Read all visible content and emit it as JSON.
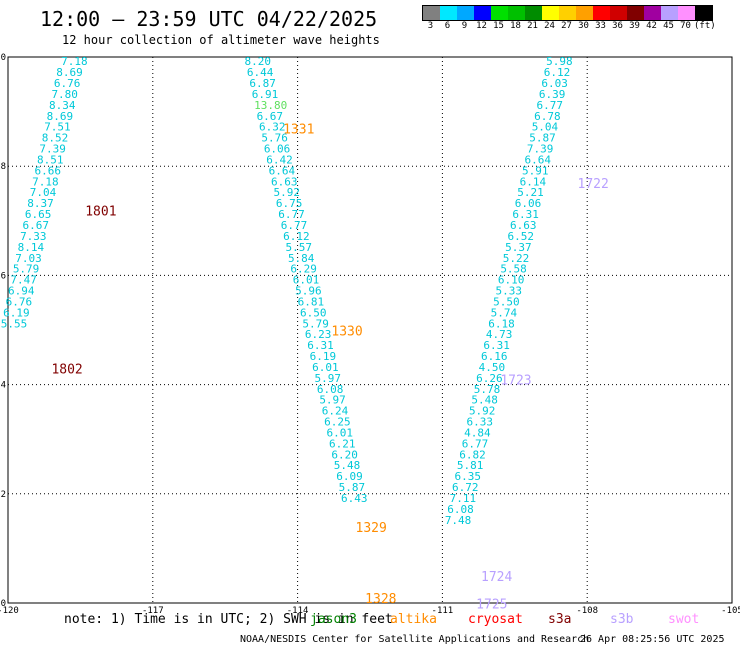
{
  "header": {
    "title": "12:00 – 23:59 UTC 04/22/2025",
    "subtitle": "12 hour collection of altimeter wave heights"
  },
  "colorbar": {
    "colors": [
      "#808080",
      "#00e8ff",
      "#00a8ff",
      "#0000ff",
      "#00e000",
      "#00c000",
      "#008c00",
      "#ffff00",
      "#ffd000",
      "#ffa000",
      "#ff0000",
      "#d00000",
      "#800000",
      "#a000a0",
      "#b8a0ff",
      "#ff90ff",
      "#000000"
    ],
    "labels": [
      "3",
      "6",
      "9",
      "12",
      "15",
      "18",
      "21",
      "24",
      "27",
      "30",
      "33",
      "36",
      "39",
      "42",
      "45",
      "70",
      "(ft)"
    ]
  },
  "chart_data": {
    "type": "scatter",
    "xlim": [
      -120,
      -105
    ],
    "ylim": [
      0,
      10
    ],
    "x_ticks": [
      "-120",
      "-117",
      "-114",
      "-111",
      "-108",
      "-105"
    ],
    "y_ticks": [
      "0",
      "2",
      "4",
      "6",
      "8",
      "10"
    ],
    "grid": true,
    "wave_labels": [
      {
        "x": -118.9,
        "y": 9.85,
        "label": "7.18",
        "color": "#00c8d8"
      },
      {
        "x": -119.0,
        "y": 9.65,
        "label": "8.69",
        "color": "#00c8d8"
      },
      {
        "x": -119.05,
        "y": 9.45,
        "label": "6.76",
        "color": "#00c8d8"
      },
      {
        "x": -119.1,
        "y": 9.25,
        "label": "7.80",
        "color": "#00c8d8"
      },
      {
        "x": -119.15,
        "y": 9.05,
        "label": "8.34",
        "color": "#00c8d8"
      },
      {
        "x": -119.2,
        "y": 8.85,
        "label": "8.69",
        "color": "#00c8d8"
      },
      {
        "x": -119.25,
        "y": 8.65,
        "label": "7.51",
        "color": "#00c8d8"
      },
      {
        "x": -119.3,
        "y": 8.45,
        "label": "8.52",
        "color": "#00c8d8"
      },
      {
        "x": -119.35,
        "y": 8.25,
        "label": "7.39",
        "color": "#00c8d8"
      },
      {
        "x": -119.4,
        "y": 8.05,
        "label": "8.51",
        "color": "#00c8d8"
      },
      {
        "x": -119.45,
        "y": 7.85,
        "label": "6.66",
        "color": "#00c8d8"
      },
      {
        "x": -119.5,
        "y": 7.65,
        "label": "7.18",
        "color": "#00c8d8"
      },
      {
        "x": -119.55,
        "y": 7.45,
        "label": "7.04",
        "color": "#00c8d8"
      },
      {
        "x": -119.6,
        "y": 7.25,
        "label": "8.37",
        "color": "#00c8d8"
      },
      {
        "x": -119.65,
        "y": 7.05,
        "label": "6.65",
        "color": "#00c8d8"
      },
      {
        "x": -119.7,
        "y": 6.85,
        "label": "6.67",
        "color": "#00c8d8"
      },
      {
        "x": -119.75,
        "y": 6.65,
        "label": "7.33",
        "color": "#00c8d8"
      },
      {
        "x": -119.8,
        "y": 6.45,
        "label": "8.14",
        "color": "#00c8d8"
      },
      {
        "x": -119.85,
        "y": 6.25,
        "label": "7.03",
        "color": "#00c8d8"
      },
      {
        "x": -119.9,
        "y": 6.05,
        "label": "5.79",
        "color": "#00c8d8"
      },
      {
        "x": -119.95,
        "y": 5.85,
        "label": "7.47",
        "color": "#00c8d8"
      },
      {
        "x": -120.0,
        "y": 5.65,
        "label": "6.94",
        "color": "#00c8d8"
      },
      {
        "x": -120.05,
        "y": 5.45,
        "label": "6.76",
        "color": "#00c8d8"
      },
      {
        "x": -120.1,
        "y": 5.25,
        "label": "6.19",
        "color": "#00c8d8"
      },
      {
        "x": -120.15,
        "y": 5.05,
        "label": "5.55",
        "color": "#00c8d8"
      },
      {
        "x": -115.1,
        "y": 9.85,
        "label": "8.20",
        "color": "#00c8d8"
      },
      {
        "x": -115.05,
        "y": 9.65,
        "label": "6.44",
        "color": "#00c8d8"
      },
      {
        "x": -115.0,
        "y": 9.45,
        "label": "6.87",
        "color": "#00c8d8"
      },
      {
        "x": -114.95,
        "y": 9.25,
        "label": "6.91",
        "color": "#00c8d8"
      },
      {
        "x": -114.9,
        "y": 9.05,
        "label": "13.80",
        "color": "#60e060"
      },
      {
        "x": -114.85,
        "y": 8.85,
        "label": "6.67",
        "color": "#00c8d8"
      },
      {
        "x": -114.8,
        "y": 8.65,
        "label": "6.32",
        "color": "#00c8d8"
      },
      {
        "x": -114.75,
        "y": 8.45,
        "label": "5.76",
        "color": "#00c8d8"
      },
      {
        "x": -114.7,
        "y": 8.25,
        "label": "6.06",
        "color": "#00c8d8"
      },
      {
        "x": -114.65,
        "y": 8.05,
        "label": "6.42",
        "color": "#00c8d8"
      },
      {
        "x": -114.6,
        "y": 7.85,
        "label": "6.64",
        "color": "#00c8d8"
      },
      {
        "x": -114.55,
        "y": 7.65,
        "label": "6.63",
        "color": "#00c8d8"
      },
      {
        "x": -114.5,
        "y": 7.45,
        "label": "5.92",
        "color": "#00c8d8"
      },
      {
        "x": -114.45,
        "y": 7.25,
        "label": "6.75",
        "color": "#00c8d8"
      },
      {
        "x": -114.4,
        "y": 7.05,
        "label": "6.77",
        "color": "#00c8d8"
      },
      {
        "x": -114.35,
        "y": 6.85,
        "label": "6.77",
        "color": "#00c8d8"
      },
      {
        "x": -114.3,
        "y": 6.65,
        "label": "6.12",
        "color": "#00c8d8"
      },
      {
        "x": -114.25,
        "y": 6.45,
        "label": "5.57",
        "color": "#00c8d8"
      },
      {
        "x": -114.2,
        "y": 6.25,
        "label": "5.84",
        "color": "#00c8d8"
      },
      {
        "x": -114.15,
        "y": 6.05,
        "label": "6.29",
        "color": "#00c8d8"
      },
      {
        "x": -114.1,
        "y": 5.85,
        "label": "6.01",
        "color": "#00c8d8"
      },
      {
        "x": -114.05,
        "y": 5.65,
        "label": "5.96",
        "color": "#00c8d8"
      },
      {
        "x": -114.0,
        "y": 5.45,
        "label": "6.81",
        "color": "#00c8d8"
      },
      {
        "x": -113.95,
        "y": 5.25,
        "label": "6.50",
        "color": "#00c8d8"
      },
      {
        "x": -113.9,
        "y": 5.05,
        "label": "5.79",
        "color": "#00c8d8"
      },
      {
        "x": -113.85,
        "y": 4.85,
        "label": "6.23",
        "color": "#00c8d8"
      },
      {
        "x": -113.8,
        "y": 4.65,
        "label": "6.31",
        "color": "#00c8d8"
      },
      {
        "x": -113.75,
        "y": 4.45,
        "label": "6.19",
        "color": "#00c8d8"
      },
      {
        "x": -113.7,
        "y": 4.25,
        "label": "6.01",
        "color": "#00c8d8"
      },
      {
        "x": -113.65,
        "y": 4.05,
        "label": "5.97",
        "color": "#00c8d8"
      },
      {
        "x": -113.6,
        "y": 3.85,
        "label": "6.08",
        "color": "#00c8d8"
      },
      {
        "x": -113.55,
        "y": 3.65,
        "label": "5.97",
        "color": "#00c8d8"
      },
      {
        "x": -113.5,
        "y": 3.45,
        "label": "6.24",
        "color": "#00c8d8"
      },
      {
        "x": -113.45,
        "y": 3.25,
        "label": "6.25",
        "color": "#00c8d8"
      },
      {
        "x": -113.4,
        "y": 3.05,
        "label": "6.01",
        "color": "#00c8d8"
      },
      {
        "x": -113.35,
        "y": 2.85,
        "label": "6.21",
        "color": "#00c8d8"
      },
      {
        "x": -113.3,
        "y": 2.65,
        "label": "6.20",
        "color": "#00c8d8"
      },
      {
        "x": -113.25,
        "y": 2.45,
        "label": "5.48",
        "color": "#00c8d8"
      },
      {
        "x": -113.2,
        "y": 2.25,
        "label": "6.09",
        "color": "#00c8d8"
      },
      {
        "x": -113.15,
        "y": 2.05,
        "label": "5.87",
        "color": "#00c8d8"
      },
      {
        "x": -113.1,
        "y": 1.85,
        "label": "6.43",
        "color": "#00c8d8"
      },
      {
        "x": -108.85,
        "y": 9.85,
        "label": "5.98",
        "color": "#00c8d8"
      },
      {
        "x": -108.9,
        "y": 9.65,
        "label": "6.12",
        "color": "#00c8d8"
      },
      {
        "x": -108.95,
        "y": 9.45,
        "label": "6.03",
        "color": "#00c8d8"
      },
      {
        "x": -109.0,
        "y": 9.25,
        "label": "6.39",
        "color": "#00c8d8"
      },
      {
        "x": -109.05,
        "y": 9.05,
        "label": "6.77",
        "color": "#00c8d8"
      },
      {
        "x": -109.1,
        "y": 8.85,
        "label": "6.78",
        "color": "#00c8d8"
      },
      {
        "x": -109.15,
        "y": 8.65,
        "label": "5.04",
        "color": "#00c8d8"
      },
      {
        "x": -109.2,
        "y": 8.45,
        "label": "5.87",
        "color": "#00c8d8"
      },
      {
        "x": -109.25,
        "y": 8.25,
        "label": "7.39",
        "color": "#00c8d8"
      },
      {
        "x": -109.3,
        "y": 8.05,
        "label": "6.64",
        "color": "#00c8d8"
      },
      {
        "x": -109.35,
        "y": 7.85,
        "label": "5.91",
        "color": "#00c8d8"
      },
      {
        "x": -109.4,
        "y": 7.65,
        "label": "6.14",
        "color": "#00c8d8"
      },
      {
        "x": -109.45,
        "y": 7.45,
        "label": "5.21",
        "color": "#00c8d8"
      },
      {
        "x": -109.5,
        "y": 7.25,
        "label": "6.06",
        "color": "#00c8d8"
      },
      {
        "x": -109.55,
        "y": 7.05,
        "label": "6.31",
        "color": "#00c8d8"
      },
      {
        "x": -109.6,
        "y": 6.85,
        "label": "6.63",
        "color": "#00c8d8"
      },
      {
        "x": -109.65,
        "y": 6.65,
        "label": "6.52",
        "color": "#00c8d8"
      },
      {
        "x": -109.7,
        "y": 6.45,
        "label": "5.37",
        "color": "#00c8d8"
      },
      {
        "x": -109.75,
        "y": 6.25,
        "label": "5.22",
        "color": "#00c8d8"
      },
      {
        "x": -109.8,
        "y": 6.05,
        "label": "5.58",
        "color": "#00c8d8"
      },
      {
        "x": -109.85,
        "y": 5.85,
        "label": "6.10",
        "color": "#00c8d8"
      },
      {
        "x": -109.9,
        "y": 5.65,
        "label": "5.33",
        "color": "#00c8d8"
      },
      {
        "x": -109.95,
        "y": 5.45,
        "label": "5.50",
        "color": "#00c8d8"
      },
      {
        "x": -110.0,
        "y": 5.25,
        "label": "5.74",
        "color": "#00c8d8"
      },
      {
        "x": -110.05,
        "y": 5.05,
        "label": "6.18",
        "color": "#00c8d8"
      },
      {
        "x": -110.1,
        "y": 4.85,
        "label": "4.73",
        "color": "#00c8d8"
      },
      {
        "x": -110.15,
        "y": 4.65,
        "label": "6.31",
        "color": "#00c8d8"
      },
      {
        "x": -110.2,
        "y": 4.45,
        "label": "6.16",
        "color": "#00c8d8"
      },
      {
        "x": -110.25,
        "y": 4.25,
        "label": "4.50",
        "color": "#00c8d8"
      },
      {
        "x": -110.3,
        "y": 4.05,
        "label": "6.26",
        "color": "#00c8d8"
      },
      {
        "x": -110.35,
        "y": 3.85,
        "label": "5.78",
        "color": "#00c8d8"
      },
      {
        "x": -110.4,
        "y": 3.65,
        "label": "5.48",
        "color": "#00c8d8"
      },
      {
        "x": -110.45,
        "y": 3.45,
        "label": "5.92",
        "color": "#00c8d8"
      },
      {
        "x": -110.5,
        "y": 3.25,
        "label": "6.33",
        "color": "#00c8d8"
      },
      {
        "x": -110.55,
        "y": 3.05,
        "label": "4.84",
        "color": "#00c8d8"
      },
      {
        "x": -110.6,
        "y": 2.85,
        "label": "6.77",
        "color": "#00c8d8"
      },
      {
        "x": -110.65,
        "y": 2.65,
        "label": "6.82",
        "color": "#00c8d8"
      },
      {
        "x": -110.7,
        "y": 2.45,
        "label": "5.81",
        "color": "#00c8d8"
      },
      {
        "x": -110.75,
        "y": 2.25,
        "label": "6.35",
        "color": "#00c8d8"
      },
      {
        "x": -110.8,
        "y": 2.05,
        "label": "6.72",
        "color": "#00c8d8"
      },
      {
        "x": -110.85,
        "y": 1.85,
        "label": "7.11",
        "color": "#00c8d8"
      },
      {
        "x": -110.9,
        "y": 1.65,
        "label": "6.08",
        "color": "#00c8d8"
      },
      {
        "x": -110.95,
        "y": 1.45,
        "label": "7.48",
        "color": "#00c8d8"
      }
    ],
    "time_labels": [
      {
        "x": -118.4,
        "y": 7.1,
        "label": "1801",
        "color": "#800000"
      },
      {
        "x": -119.1,
        "y": 4.2,
        "label": "1802",
        "color": "#800000"
      },
      {
        "x": -114.3,
        "y": 8.6,
        "label": "1331",
        "color": "#ff8c00"
      },
      {
        "x": -113.3,
        "y": 4.9,
        "label": "1330",
        "color": "#ff8c00"
      },
      {
        "x": -112.8,
        "y": 1.3,
        "label": "1329",
        "color": "#ff8c00"
      },
      {
        "x": -112.6,
        "y": 0.0,
        "label": "1328",
        "color": "#ff8c00"
      },
      {
        "x": -108.2,
        "y": 7.6,
        "label": "1722",
        "color": "#b8a0ff"
      },
      {
        "x": -109.8,
        "y": 4.0,
        "label": "1723",
        "color": "#b8a0ff"
      },
      {
        "x": -110.2,
        "y": 0.4,
        "label": "1724",
        "color": "#b8a0ff"
      },
      {
        "x": -110.3,
        "y": -0.1,
        "label": "1725",
        "color": "#b8a0ff"
      }
    ]
  },
  "footer": {
    "note": "note: 1) Time is in UTC; 2) SWH is in feet",
    "legend": [
      {
        "label": "jason3",
        "color": "#008000"
      },
      {
        "label": "altika",
        "color": "#ff8c00"
      },
      {
        "label": "cryosat",
        "color": "#ff0000"
      },
      {
        "label": "s3a",
        "color": "#800000"
      },
      {
        "label": "s3b",
        "color": "#b8a0ff"
      },
      {
        "label": "swot",
        "color": "#ff90ff"
      }
    ],
    "credit": "NOAA/NESDIS Center for Satellite Applications and Research",
    "timestamp": "26 Apr 08:25:56 UTC 2025"
  }
}
